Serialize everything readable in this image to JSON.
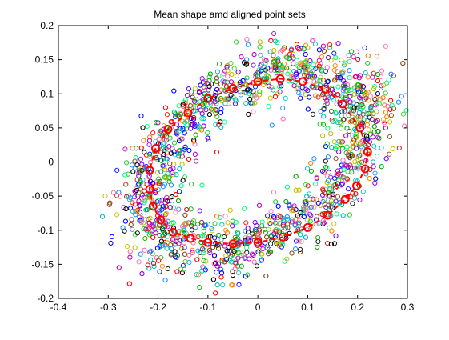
{
  "chart_data": {
    "type": "scatter",
    "title": "Mean shape amd aligned point sets",
    "xlabel": "",
    "ylabel": "",
    "xlim": [
      -0.4,
      0.3
    ],
    "ylim": [
      -0.2,
      0.2
    ],
    "xticks": [
      -0.4,
      -0.3,
      -0.2,
      -0.1,
      0,
      0.1,
      0.2,
      0.3
    ],
    "yticks": [
      -0.2,
      -0.15,
      -0.1,
      -0.05,
      0,
      0.05,
      0.1,
      0.15,
      0.2
    ],
    "xtick_labels": [
      "-0.4",
      "-0.3",
      "-0.2",
      "-0.1",
      "0",
      "0.1",
      "0.2",
      "0.3"
    ],
    "ytick_labels": [
      "-0.2",
      "-0.15",
      "-0.1",
      "-0.05",
      "0",
      "0.05",
      "0.1",
      "0.15",
      "0.2"
    ],
    "grid": false,
    "legend": "none",
    "series": [
      {
        "role": "mean-shape",
        "color": "#ff0000",
        "marker": "circle",
        "line": "dashed",
        "points": [
          [
            0.22,
            0.015
          ],
          [
            0.205,
            0.05
          ],
          [
            0.17,
            0.085
          ],
          [
            0.135,
            0.107
          ],
          [
            0.09,
            0.118
          ],
          [
            0.045,
            0.122
          ],
          [
            0.0,
            0.118
          ],
          [
            -0.05,
            0.108
          ],
          [
            -0.1,
            0.093
          ],
          [
            -0.14,
            0.072
          ],
          [
            -0.18,
            0.048
          ],
          [
            -0.205,
            0.02
          ],
          [
            -0.217,
            -0.012
          ],
          [
            -0.217,
            -0.04
          ],
          [
            -0.21,
            -0.065
          ],
          [
            -0.195,
            -0.085
          ],
          [
            -0.17,
            -0.103
          ],
          [
            -0.135,
            -0.112
          ],
          [
            -0.1,
            -0.118
          ],
          [
            -0.05,
            -0.12
          ],
          [
            0.0,
            -0.118
          ],
          [
            0.05,
            -0.11
          ],
          [
            0.1,
            -0.096
          ],
          [
            0.14,
            -0.078
          ],
          [
            0.175,
            -0.055
          ],
          [
            0.198,
            -0.035
          ],
          [
            0.215,
            -0.01
          ]
        ]
      },
      {
        "role": "aligned-point-sets",
        "marker": "circle-open",
        "palette": [
          "#ff0000",
          "#00aa00",
          "#0000ff",
          "#00bfbf",
          "#bf00bf",
          "#bfbf00",
          "#000000",
          "#ff7f00",
          "#7f00ff",
          "#00ff7f",
          "#ff69b4",
          "#8b4513",
          "#32cd32",
          "#1e90ff"
        ],
        "ring_center": [
          -0.005,
          0.003
        ],
        "ring_radius_x": 0.228,
        "ring_radius_y": 0.12,
        "ring_rotation_deg": 20,
        "ring_spread": 0.055,
        "count": 2600
      }
    ]
  }
}
